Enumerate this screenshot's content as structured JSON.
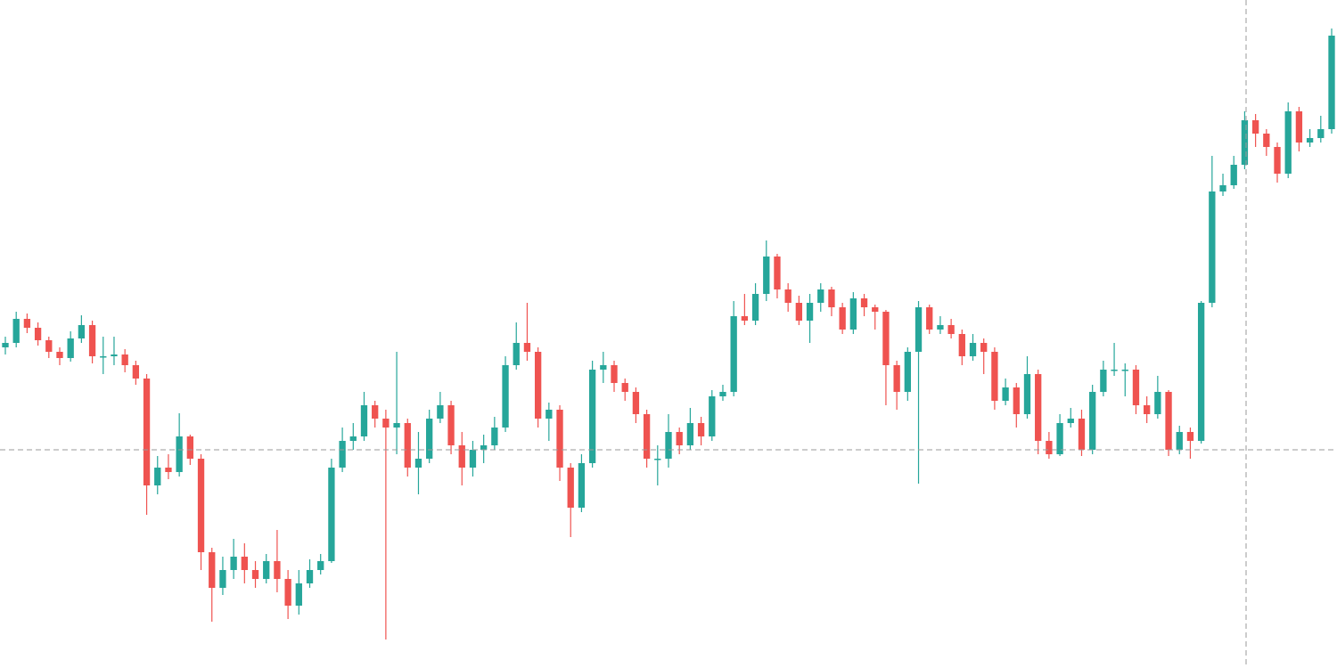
{
  "chart_data": {
    "type": "candlestick",
    "up_color": "#26a69a",
    "down_color": "#ef5350",
    "ylim": [
      0,
      750
    ],
    "open": [
      360,
      365,
      392,
      382,
      368,
      355,
      348,
      370,
      385,
      350,
      350,
      352,
      340,
      325,
      205,
      225,
      220,
      260,
      235,
      130,
      90,
      110,
      125,
      110,
      100,
      120,
      100,
      70,
      95,
      110,
      120,
      225,
      255,
      260,
      295,
      280,
      270,
      275,
      225,
      235,
      280,
      295,
      250,
      225,
      245,
      250,
      270,
      340,
      365,
      355,
      280,
      290,
      225,
      180,
      230,
      335,
      340,
      320,
      310,
      285,
      235,
      235,
      265,
      250,
      275,
      260,
      305,
      310,
      395,
      390,
      420,
      462,
      425,
      410,
      390,
      410,
      425,
      405,
      380,
      415,
      405,
      400,
      340,
      310,
      355,
      405,
      380,
      385,
      375,
      350,
      365,
      355,
      300,
      315,
      285,
      330,
      255,
      240,
      275,
      280,
      245,
      310,
      335,
      335,
      335,
      295,
      285,
      310,
      245,
      265,
      255,
      410,
      535,
      542,
      565,
      615,
      600,
      585,
      555,
      625,
      590,
      595,
      605
    ],
    "high": [
      372,
      400,
      398,
      388,
      372,
      360,
      378,
      396,
      390,
      372,
      372,
      358,
      345,
      330,
      238,
      240,
      286,
      262,
      240,
      135,
      125,
      145,
      140,
      120,
      128,
      155,
      110,
      110,
      122,
      128,
      235,
      270,
      275,
      310,
      300,
      290,
      355,
      280,
      265,
      290,
      310,
      300,
      265,
      255,
      262,
      282,
      350,
      388,
      410,
      360,
      298,
      295,
      230,
      240,
      345,
      355,
      345,
      325,
      315,
      290,
      250,
      285,
      270,
      292,
      282,
      312,
      318,
      412,
      420,
      432,
      480,
      465,
      432,
      418,
      420,
      432,
      428,
      410,
      422,
      420,
      408,
      402,
      345,
      360,
      412,
      408,
      395,
      392,
      380,
      375,
      370,
      360,
      325,
      320,
      350,
      335,
      265,
      285,
      292,
      290,
      318,
      345,
      365,
      342,
      340,
      305,
      328,
      312,
      272,
      270,
      412,
      575,
      555,
      575,
      625,
      622,
      605,
      590,
      635,
      630,
      605,
      620,
      718
    ],
    "low": [
      352,
      360,
      376,
      362,
      348,
      340,
      344,
      365,
      342,
      330,
      340,
      332,
      318,
      172,
      195,
      212,
      215,
      228,
      110,
      52,
      82,
      100,
      95,
      90,
      95,
      85,
      55,
      60,
      90,
      105,
      118,
      220,
      245,
      255,
      270,
      32,
      240,
      215,
      195,
      230,
      275,
      240,
      205,
      215,
      230,
      245,
      265,
      335,
      345,
      270,
      255,
      210,
      147,
      175,
      225,
      320,
      310,
      300,
      275,
      225,
      205,
      225,
      240,
      245,
      250,
      255,
      300,
      305,
      385,
      385,
      412,
      415,
      400,
      385,
      365,
      400,
      395,
      375,
      375,
      395,
      380,
      295,
      290,
      300,
      207,
      375,
      375,
      370,
      340,
      345,
      330,
      290,
      295,
      270,
      280,
      240,
      235,
      238,
      270,
      238,
      240,
      305,
      328,
      305,
      285,
      275,
      280,
      238,
      240,
      235,
      252,
      405,
      530,
      538,
      560,
      585,
      575,
      545,
      550,
      580,
      585,
      590,
      600
    ],
    "close": [
      365,
      392,
      382,
      368,
      355,
      348,
      370,
      385,
      350,
      350,
      352,
      340,
      325,
      205,
      225,
      220,
      260,
      235,
      130,
      90,
      110,
      125,
      110,
      100,
      120,
      100,
      70,
      95,
      110,
      120,
      225,
      255,
      260,
      295,
      280,
      270,
      275,
      225,
      235,
      280,
      295,
      250,
      225,
      245,
      250,
      270,
      340,
      365,
      355,
      280,
      290,
      225,
      180,
      230,
      335,
      340,
      320,
      310,
      285,
      235,
      235,
      265,
      250,
      275,
      260,
      305,
      310,
      395,
      390,
      420,
      462,
      425,
      410,
      390,
      410,
      425,
      405,
      380,
      415,
      405,
      400,
      340,
      310,
      355,
      405,
      380,
      385,
      375,
      350,
      365,
      355,
      300,
      315,
      285,
      330,
      255,
      240,
      275,
      280,
      245,
      310,
      335,
      335,
      335,
      295,
      285,
      310,
      245,
      265,
      255,
      410,
      535,
      542,
      565,
      615,
      600,
      585,
      555,
      625,
      590,
      595,
      605,
      710
    ]
  }
}
